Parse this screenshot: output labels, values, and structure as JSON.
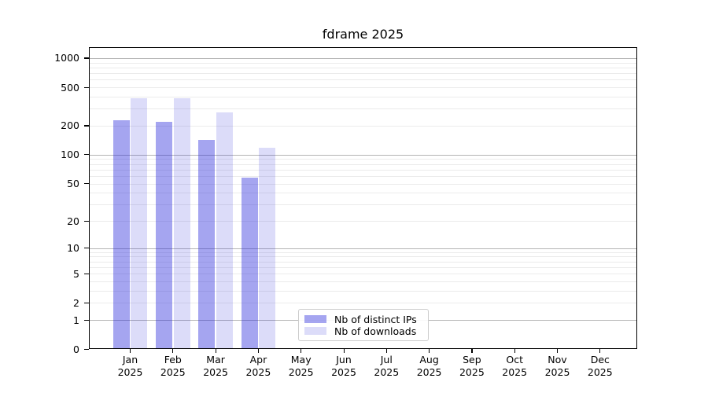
{
  "chart_data": {
    "type": "bar",
    "title": "fdrame 2025",
    "year_label": "2025",
    "categories": [
      "Jan",
      "Feb",
      "Mar",
      "Apr",
      "May",
      "Jun",
      "Jul",
      "Aug",
      "Sep",
      "Oct",
      "Nov",
      "Dec"
    ],
    "series": [
      {
        "name": "Nb of distinct IPs",
        "color": "rgba(40,40,220,0.42)",
        "values": [
          226,
          218,
          143,
          58,
          0,
          0,
          0,
          0,
          0,
          0,
          0,
          0
        ]
      },
      {
        "name": "Nb of downloads",
        "color": "rgba(40,40,220,0.16)",
        "values": [
          385,
          385,
          273,
          119,
          0,
          0,
          0,
          0,
          0,
          0,
          0,
          0
        ]
      }
    ],
    "y_scale": "log1p",
    "y_ticks": [
      0,
      1,
      2,
      5,
      10,
      20,
      50,
      100,
      200,
      500,
      1000
    ],
    "ylim": [
      0,
      1300
    ],
    "xlabel": "",
    "ylabel": "",
    "grid": "horizontal",
    "legend_position": "inside lower-center",
    "colors": {
      "major_grid": "#b4b4b4",
      "minor_grid": "#ebebeb",
      "spine": "#000000",
      "background": "#ffffff"
    }
  }
}
